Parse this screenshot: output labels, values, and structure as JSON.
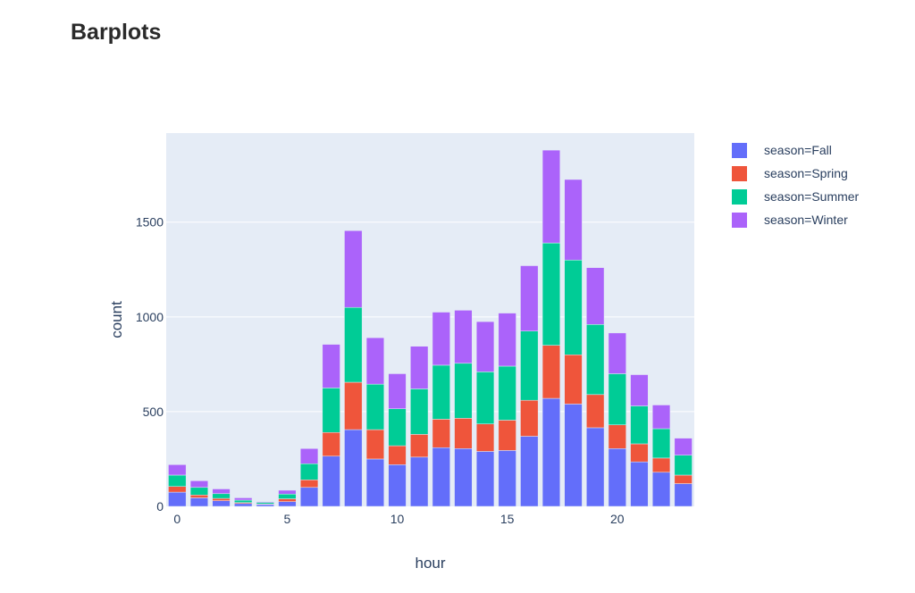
{
  "page": {
    "title": "Barplots"
  },
  "chart_data": {
    "type": "bar",
    "barmode": "stack",
    "xlabel": "hour",
    "ylabel": "count",
    "xlim": [
      -0.5,
      23.5
    ],
    "ylim": [
      0,
      1970
    ],
    "x_ticks": [
      0,
      5,
      10,
      15,
      20
    ],
    "y_ticks": [
      0,
      500,
      1000,
      1500
    ],
    "grid": true,
    "legend_position": "top-right",
    "categories": [
      0,
      1,
      2,
      3,
      4,
      5,
      6,
      7,
      8,
      9,
      10,
      11,
      12,
      13,
      14,
      15,
      16,
      17,
      18,
      19,
      20,
      21,
      22,
      23
    ],
    "series": [
      {
        "name": "season=Fall",
        "color": "#636efa",
        "values": [
          75,
          45,
          30,
          15,
          10,
          25,
          100,
          265,
          405,
          250,
          220,
          260,
          310,
          305,
          290,
          295,
          370,
          570,
          540,
          415,
          305,
          235,
          180,
          120
        ]
      },
      {
        "name": "season=Spring",
        "color": "#ef553b",
        "values": [
          30,
          15,
          12,
          5,
          3,
          15,
          40,
          125,
          250,
          155,
          100,
          120,
          150,
          160,
          145,
          160,
          190,
          280,
          260,
          175,
          125,
          95,
          75,
          45
        ]
      },
      {
        "name": "season=Summer",
        "color": "#00cc96",
        "values": [
          60,
          40,
          25,
          13,
          8,
          25,
          85,
          235,
          395,
          240,
          195,
          240,
          285,
          290,
          275,
          285,
          365,
          540,
          500,
          370,
          270,
          200,
          155,
          105
        ]
      },
      {
        "name": "season=Winter",
        "color": "#ab63fa",
        "values": [
          55,
          35,
          25,
          12,
          4,
          20,
          80,
          230,
          405,
          245,
          185,
          225,
          280,
          280,
          265,
          280,
          345,
          490,
          425,
          300,
          215,
          165,
          125,
          90
        ]
      }
    ]
  }
}
